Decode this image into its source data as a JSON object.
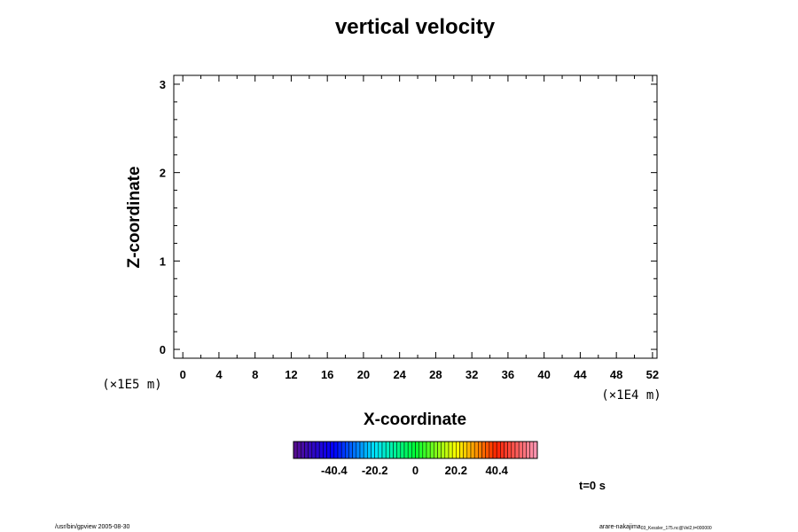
{
  "chart_data": {
    "type": "heatmap",
    "title": "vertical velocity",
    "xlabel": "X-coordinate",
    "ylabel": "Z-coordinate",
    "x_unit": "(×1E4 m)",
    "y_unit": "(×1E5 m)",
    "xlim": [
      -1,
      52.5
    ],
    "ylim": [
      -0.1,
      3.1
    ],
    "x_ticks": [
      "0",
      "4",
      "8",
      "12",
      "16",
      "20",
      "24",
      "28",
      "32",
      "36",
      "40",
      "44",
      "48",
      "52"
    ],
    "x_tick_values": [
      0,
      4,
      8,
      12,
      16,
      20,
      24,
      28,
      32,
      36,
      40,
      44,
      48,
      52
    ],
    "y_ticks": [
      "0",
      "1",
      "2",
      "3"
    ],
    "y_tick_values": [
      0,
      1,
      2,
      3
    ],
    "values": [],
    "colorbar": {
      "min": -60.6,
      "max": 60.6,
      "tick_labels": [
        "-40.4",
        "-20.2",
        "0",
        "20.2",
        "40.4"
      ],
      "tick_values": [
        -40.4,
        -20.2,
        0,
        20.2,
        40.4
      ],
      "colors": [
        "#5a0f8c",
        "#0000ff",
        "#00e5ff",
        "#00ff33",
        "#ffff00",
        "#ff2200",
        "#ff9ab8"
      ]
    },
    "time_label": "t=0 s",
    "grid": false
  },
  "footer": {
    "left": "/usr/bin/gpview 2005-08-30",
    "right_main": "arare-nakajima",
    "right_sub": "03_Kessler_175.nc@Vel2,t=000000"
  }
}
